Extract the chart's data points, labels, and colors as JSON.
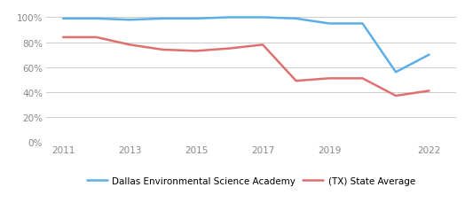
{
  "blue_x": [
    2011,
    2012,
    2013,
    2014,
    2015,
    2016,
    2017,
    2018,
    2019,
    2020,
    2021,
    2022
  ],
  "blue_y": [
    0.99,
    0.99,
    0.98,
    0.99,
    0.99,
    1.0,
    1.0,
    0.99,
    0.95,
    0.95,
    0.56,
    0.7
  ],
  "red_x": [
    2011,
    2012,
    2013,
    2014,
    2015,
    2016,
    2017,
    2018,
    2019,
    2020,
    2021,
    2022
  ],
  "red_y": [
    0.84,
    0.84,
    0.78,
    0.74,
    0.73,
    0.75,
    0.78,
    0.49,
    0.51,
    0.51,
    0.37,
    0.41
  ],
  "blue_color": "#5aafe8",
  "red_color": "#e07070",
  "blue_label": "Dallas Environmental Science Academy",
  "red_label": "(TX) State Average",
  "xlim": [
    2010.5,
    2022.8
  ],
  "ylim": [
    0,
    1.08
  ],
  "yticks": [
    0,
    0.2,
    0.4,
    0.6,
    0.8,
    1.0
  ],
  "xticks": [
    2011,
    2013,
    2015,
    2017,
    2019,
    2022
  ],
  "bg_color": "#ffffff",
  "grid_color": "#cccccc",
  "line_width": 1.8,
  "legend_fontsize": 7.5,
  "tick_fontsize": 7.5,
  "tick_color": "#888888"
}
